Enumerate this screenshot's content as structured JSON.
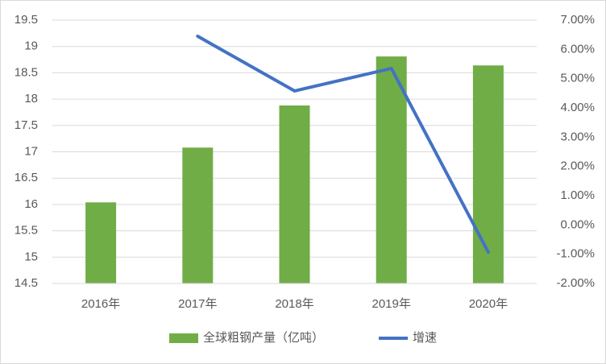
{
  "chart_data": {
    "type": "bar-line",
    "categories": [
      "2016年",
      "2017年",
      "2018年",
      "2019年",
      "2020年"
    ],
    "series": [
      {
        "name": "全球粗钢产量（亿吨）",
        "type": "bar",
        "color": "#70ad47",
        "values": [
          16.04,
          17.08,
          17.88,
          18.81,
          18.64
        ]
      },
      {
        "name": "增速",
        "type": "line",
        "axis": "y2",
        "color": "#4472c4",
        "values": [
          null,
          6.45,
          4.58,
          5.35,
          -0.93
        ]
      }
    ],
    "ylim": [
      14.5,
      19.5
    ],
    "yticks": [
      14.5,
      15,
      15.5,
      16,
      16.5,
      17,
      17.5,
      18,
      18.5,
      19,
      19.5
    ],
    "y2lim": [
      -2,
      7
    ],
    "y2ticks": [
      {
        "value": -2,
        "label": "-2.00%"
      },
      {
        "value": -1,
        "label": "-1.00%"
      },
      {
        "value": 0,
        "label": "0.00%"
      },
      {
        "value": 1,
        "label": "1.00%"
      },
      {
        "value": 2,
        "label": "2.00%"
      },
      {
        "value": 3,
        "label": "3.00%"
      },
      {
        "value": 4,
        "label": "4.00%"
      },
      {
        "value": 5,
        "label": "5.00%"
      },
      {
        "value": 6,
        "label": "6.00%"
      },
      {
        "value": 7,
        "label": "7.00%"
      }
    ],
    "grid": true,
    "legend": "bottom"
  }
}
